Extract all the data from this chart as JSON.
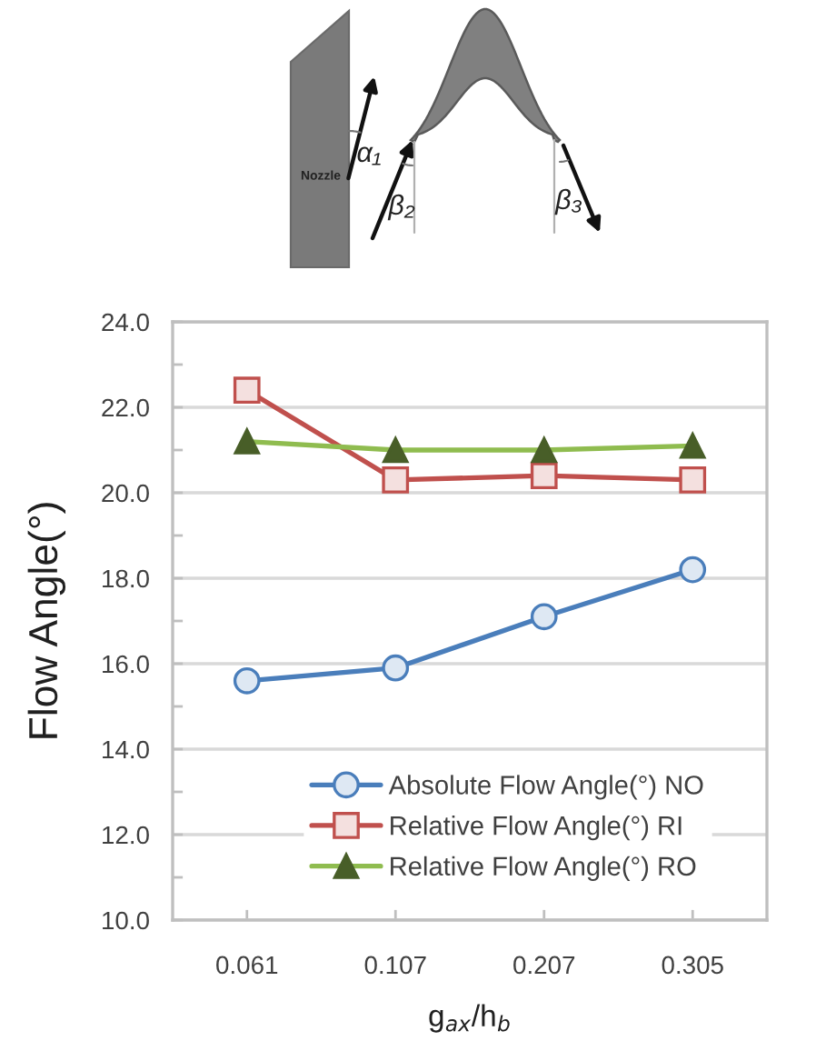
{
  "chart_data": {
    "type": "line",
    "categories": [
      "0.061",
      "0.107",
      "0.207",
      "0.305"
    ],
    "series": [
      {
        "name": "Absolute Flow Angle(°) NO",
        "color": "#4a7ebb",
        "marker": "circle",
        "values": [
          15.6,
          15.9,
          17.1,
          18.2
        ]
      },
      {
        "name": "Relative Flow Angle(°) RI",
        "color": "#c0504d",
        "marker": "square",
        "values": [
          22.4,
          20.3,
          20.4,
          20.3
        ]
      },
      {
        "name": "Relative Flow Angle(°) RO",
        "color": "#8fbc4f",
        "marker": "triangle",
        "values": [
          21.2,
          21.0,
          21.0,
          21.1
        ]
      }
    ],
    "xlabel": "g$_{ax}$/h$_{b}$",
    "ylabel": "Flow Angle(°)",
    "ylim": [
      10,
      24
    ],
    "yticks": [
      {
        "value": 10,
        "label": "10.0"
      },
      {
        "value": 11,
        "label": null
      },
      {
        "value": 12,
        "label": "12.0"
      },
      {
        "value": 13,
        "label": null
      },
      {
        "value": 14,
        "label": "14.0"
      },
      {
        "value": 15,
        "label": null
      },
      {
        "value": 16,
        "label": "16.0"
      },
      {
        "value": 17,
        "label": null
      },
      {
        "value": 18,
        "label": "18.0"
      },
      {
        "value": 19,
        "label": null
      },
      {
        "value": 20,
        "label": "20.0"
      },
      {
        "value": 21,
        "label": null
      },
      {
        "value": 22,
        "label": "22.0"
      },
      {
        "value": 23,
        "label": null
      },
      {
        "value": 24,
        "label": "24.0"
      }
    ],
    "grid": "y",
    "legend": "bottom right",
    "annotations": [
      "Nozzle",
      "α₁",
      "β₂",
      "β₃"
    ]
  }
}
